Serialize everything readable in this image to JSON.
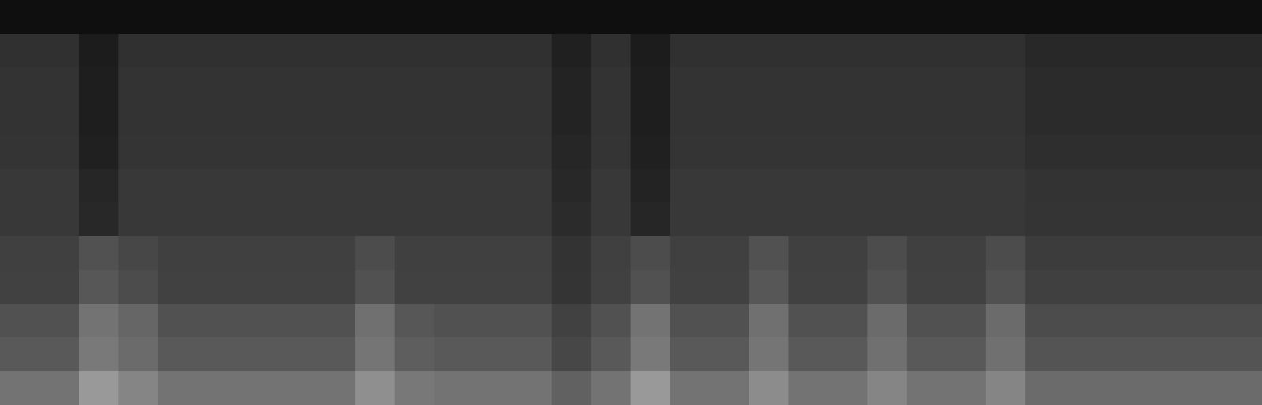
{
  "chart_data": {
    "type": "heatmap",
    "tick_labels": false,
    "color": "gray",
    "zlim": [
      0,
      1
    ],
    "cells": [
      [
        0.06,
        0.06,
        0.06,
        0.06,
        0.06,
        0.06,
        0.06,
        0.06,
        0.06,
        0.06,
        0.06,
        0.06,
        0.06,
        0.06,
        0.06,
        0.06,
        0.06,
        0.06,
        0.06,
        0.06,
        0.06,
        0.06,
        0.06,
        0.06,
        0.06,
        0.06,
        0.06,
        0.06,
        0.06,
        0.06,
        0.06,
        0.06
      ],
      [
        0.19,
        0.19,
        0.11,
        0.19,
        0.19,
        0.19,
        0.19,
        0.19,
        0.19,
        0.19,
        0.19,
        0.19,
        0.19,
        0.19,
        0.13,
        0.19,
        0.11,
        0.19,
        0.19,
        0.19,
        0.19,
        0.19,
        0.19,
        0.19,
        0.19,
        0.19,
        0.16,
        0.16,
        0.16,
        0.16,
        0.16,
        0.16
      ],
      [
        0.2,
        0.2,
        0.12,
        0.2,
        0.2,
        0.2,
        0.2,
        0.2,
        0.2,
        0.2,
        0.2,
        0.2,
        0.2,
        0.2,
        0.14,
        0.2,
        0.12,
        0.2,
        0.2,
        0.2,
        0.2,
        0.2,
        0.2,
        0.2,
        0.2,
        0.2,
        0.17,
        0.17,
        0.17,
        0.17,
        0.17,
        0.17
      ],
      [
        0.2,
        0.2,
        0.12,
        0.2,
        0.2,
        0.2,
        0.2,
        0.2,
        0.2,
        0.2,
        0.2,
        0.2,
        0.2,
        0.2,
        0.14,
        0.2,
        0.12,
        0.2,
        0.2,
        0.2,
        0.2,
        0.2,
        0.2,
        0.2,
        0.2,
        0.2,
        0.17,
        0.17,
        0.17,
        0.17,
        0.17,
        0.17
      ],
      [
        0.21,
        0.21,
        0.13,
        0.21,
        0.21,
        0.21,
        0.21,
        0.21,
        0.21,
        0.21,
        0.21,
        0.21,
        0.21,
        0.21,
        0.15,
        0.21,
        0.13,
        0.21,
        0.21,
        0.21,
        0.21,
        0.21,
        0.21,
        0.21,
        0.21,
        0.21,
        0.18,
        0.18,
        0.18,
        0.18,
        0.18,
        0.18
      ],
      [
        0.22,
        0.22,
        0.15,
        0.22,
        0.22,
        0.22,
        0.22,
        0.22,
        0.22,
        0.22,
        0.22,
        0.22,
        0.22,
        0.22,
        0.16,
        0.22,
        0.14,
        0.22,
        0.22,
        0.22,
        0.22,
        0.22,
        0.22,
        0.22,
        0.22,
        0.22,
        0.2,
        0.2,
        0.2,
        0.2,
        0.2,
        0.2
      ],
      [
        0.22,
        0.22,
        0.16,
        0.22,
        0.22,
        0.22,
        0.22,
        0.22,
        0.22,
        0.22,
        0.22,
        0.22,
        0.22,
        0.22,
        0.17,
        0.22,
        0.15,
        0.22,
        0.22,
        0.22,
        0.22,
        0.22,
        0.22,
        0.22,
        0.22,
        0.22,
        0.21,
        0.21,
        0.21,
        0.21,
        0.21,
        0.21
      ],
      [
        0.25,
        0.25,
        0.32,
        0.28,
        0.25,
        0.25,
        0.25,
        0.25,
        0.25,
        0.3,
        0.25,
        0.25,
        0.25,
        0.25,
        0.2,
        0.25,
        0.3,
        0.25,
        0.25,
        0.32,
        0.25,
        0.25,
        0.3,
        0.25,
        0.25,
        0.3,
        0.24,
        0.24,
        0.24,
        0.24,
        0.24,
        0.24
      ],
      [
        0.26,
        0.26,
        0.34,
        0.3,
        0.26,
        0.26,
        0.26,
        0.26,
        0.26,
        0.32,
        0.26,
        0.26,
        0.26,
        0.26,
        0.21,
        0.26,
        0.32,
        0.26,
        0.26,
        0.34,
        0.26,
        0.26,
        0.32,
        0.26,
        0.26,
        0.32,
        0.25,
        0.25,
        0.25,
        0.25,
        0.25,
        0.25
      ],
      [
        0.32,
        0.32,
        0.45,
        0.4,
        0.32,
        0.32,
        0.32,
        0.32,
        0.32,
        0.44,
        0.34,
        0.32,
        0.32,
        0.32,
        0.26,
        0.32,
        0.45,
        0.32,
        0.32,
        0.44,
        0.32,
        0.32,
        0.42,
        0.32,
        0.32,
        0.42,
        0.3,
        0.3,
        0.3,
        0.3,
        0.3,
        0.3
      ],
      [
        0.35,
        0.35,
        0.48,
        0.42,
        0.35,
        0.35,
        0.35,
        0.35,
        0.35,
        0.46,
        0.37,
        0.35,
        0.35,
        0.35,
        0.28,
        0.35,
        0.48,
        0.35,
        0.35,
        0.46,
        0.35,
        0.35,
        0.44,
        0.35,
        0.35,
        0.44,
        0.33,
        0.33,
        0.33,
        0.33,
        0.33,
        0.33
      ],
      [
        0.45,
        0.45,
        0.6,
        0.52,
        0.45,
        0.45,
        0.45,
        0.45,
        0.45,
        0.56,
        0.47,
        0.45,
        0.45,
        0.45,
        0.38,
        0.45,
        0.6,
        0.45,
        0.45,
        0.55,
        0.45,
        0.45,
        0.52,
        0.45,
        0.45,
        0.52,
        0.42,
        0.42,
        0.42,
        0.42,
        0.42,
        0.42
      ]
    ]
  }
}
